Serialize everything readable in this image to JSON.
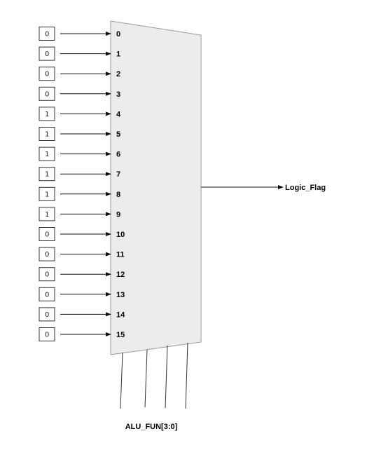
{
  "inputs": [
    {
      "port": "0",
      "value": "0"
    },
    {
      "port": "1",
      "value": "0"
    },
    {
      "port": "2",
      "value": "0"
    },
    {
      "port": "3",
      "value": "0"
    },
    {
      "port": "4",
      "value": "1"
    },
    {
      "port": "5",
      "value": "1"
    },
    {
      "port": "6",
      "value": "1"
    },
    {
      "port": "7",
      "value": "1"
    },
    {
      "port": "8",
      "value": "1"
    },
    {
      "port": "9",
      "value": "1"
    },
    {
      "port": "10",
      "value": "0"
    },
    {
      "port": "11",
      "value": "0"
    },
    {
      "port": "12",
      "value": "0"
    },
    {
      "port": "13",
      "value": "0"
    },
    {
      "port": "14",
      "value": "0"
    },
    {
      "port": "15",
      "value": "0"
    }
  ],
  "output": {
    "label": "Logic_Flag"
  },
  "select": {
    "label": "ALU_FUN[3:0]",
    "line_count": 4
  }
}
